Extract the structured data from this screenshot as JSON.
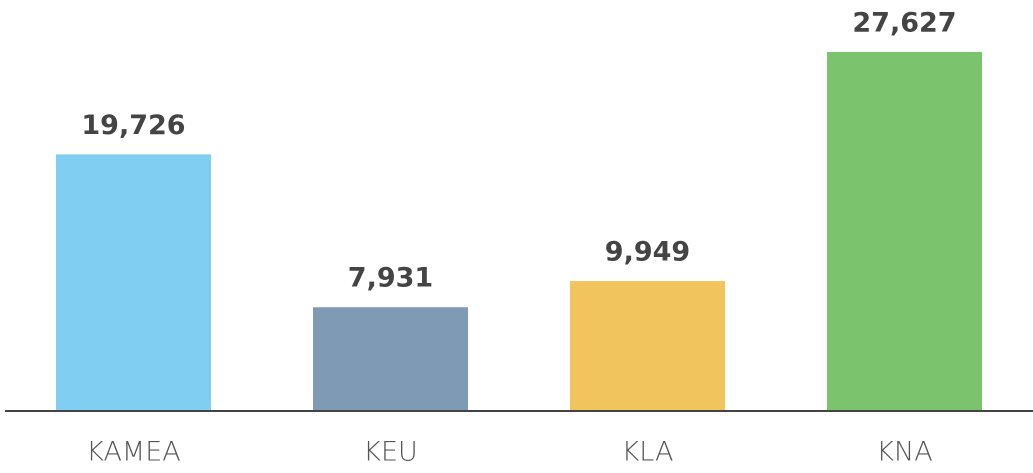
{
  "chart_data": {
    "type": "bar",
    "categories": [
      "KAMEA",
      "KEU",
      "KLA",
      "KNA"
    ],
    "values": [
      19726,
      7931,
      9949,
      27627
    ],
    "value_labels": [
      "19,726",
      "7,931",
      "9,949",
      "27,627"
    ],
    "colors": [
      "#80cff2",
      "#7f9ab5",
      "#f2c45e",
      "#7bc46d"
    ]
  }
}
